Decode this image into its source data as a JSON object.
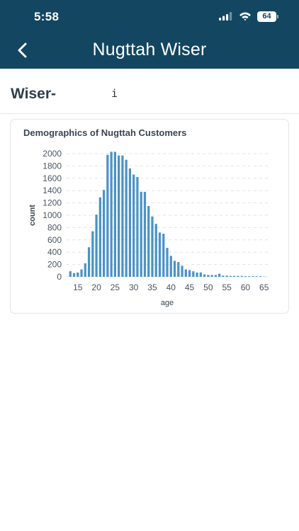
{
  "status_bar": {
    "time": "5:58",
    "battery": "64",
    "icons": [
      "signal-icon",
      "wifi-icon",
      "battery-icon"
    ]
  },
  "nav": {
    "title": "Nugttah Wiser",
    "back_icon": "chevron-left-icon"
  },
  "section": {
    "title": "Wiser-",
    "info_icon": "i"
  },
  "colors": {
    "header": "#134661",
    "bar": "#4b93c7"
  },
  "chart_data": {
    "type": "bar",
    "title": "Demographics of Nugttah Customers",
    "xlabel": "age",
    "ylabel": "count",
    "xlim": [
      12,
      66
    ],
    "ylim": [
      0,
      2000
    ],
    "xticks": [
      15,
      20,
      25,
      30,
      35,
      40,
      45,
      50,
      55,
      60,
      65
    ],
    "yticks": [
      0,
      200,
      400,
      600,
      800,
      1000,
      1200,
      1400,
      1600,
      1800,
      2000
    ],
    "grid": true,
    "x": [
      13,
      14,
      15,
      16,
      17,
      18,
      19,
      20,
      21,
      22,
      23,
      24,
      25,
      26,
      27,
      28,
      29,
      30,
      31,
      32,
      33,
      34,
      35,
      36,
      37,
      38,
      39,
      40,
      41,
      42,
      43,
      44,
      45,
      46,
      47,
      48,
      49,
      50,
      51,
      52,
      53,
      54,
      55,
      56,
      57,
      58,
      59,
      60,
      61,
      62,
      63,
      64,
      65
    ],
    "values": [
      90,
      60,
      70,
      120,
      220,
      480,
      740,
      1010,
      1290,
      1410,
      1980,
      2030,
      2030,
      1970,
      1970,
      1900,
      1760,
      1660,
      1620,
      1380,
      1380,
      1150,
      980,
      860,
      720,
      700,
      470,
      340,
      260,
      240,
      180,
      120,
      110,
      90,
      70,
      70,
      40,
      30,
      30,
      30,
      50,
      20,
      20,
      15,
      15,
      15,
      15,
      10,
      10,
      10,
      10,
      10,
      5
    ]
  }
}
